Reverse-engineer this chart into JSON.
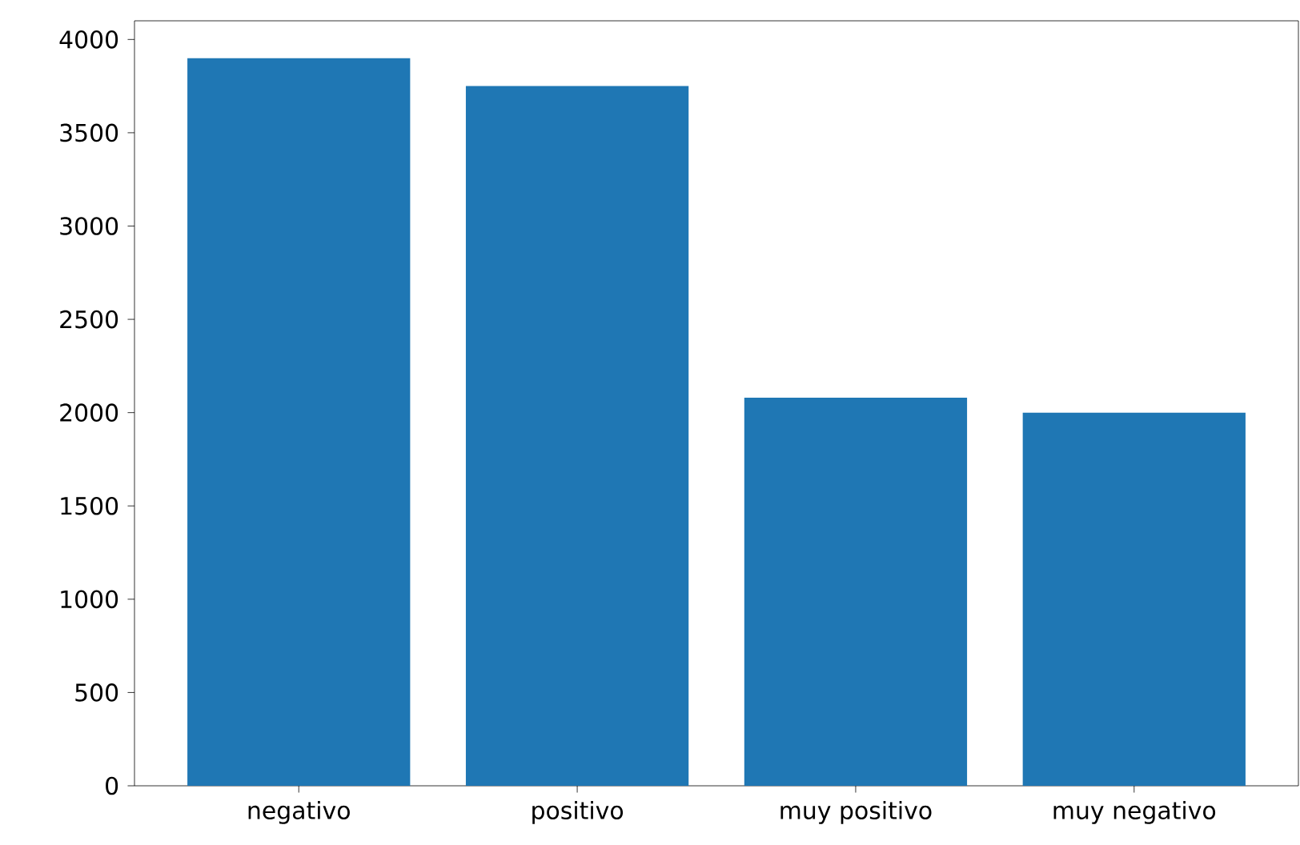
{
  "chart_data": {
    "type": "bar",
    "categories": [
      "negativo",
      "positivo",
      "muy positivo",
      "muy negativo"
    ],
    "values": [
      3900,
      3750,
      2080,
      2000
    ],
    "color": "#1f77b4",
    "ylim": [
      0,
      4100
    ],
    "yticks": [
      0,
      500,
      1000,
      1500,
      2000,
      2500,
      3000,
      3500,
      4000
    ]
  }
}
